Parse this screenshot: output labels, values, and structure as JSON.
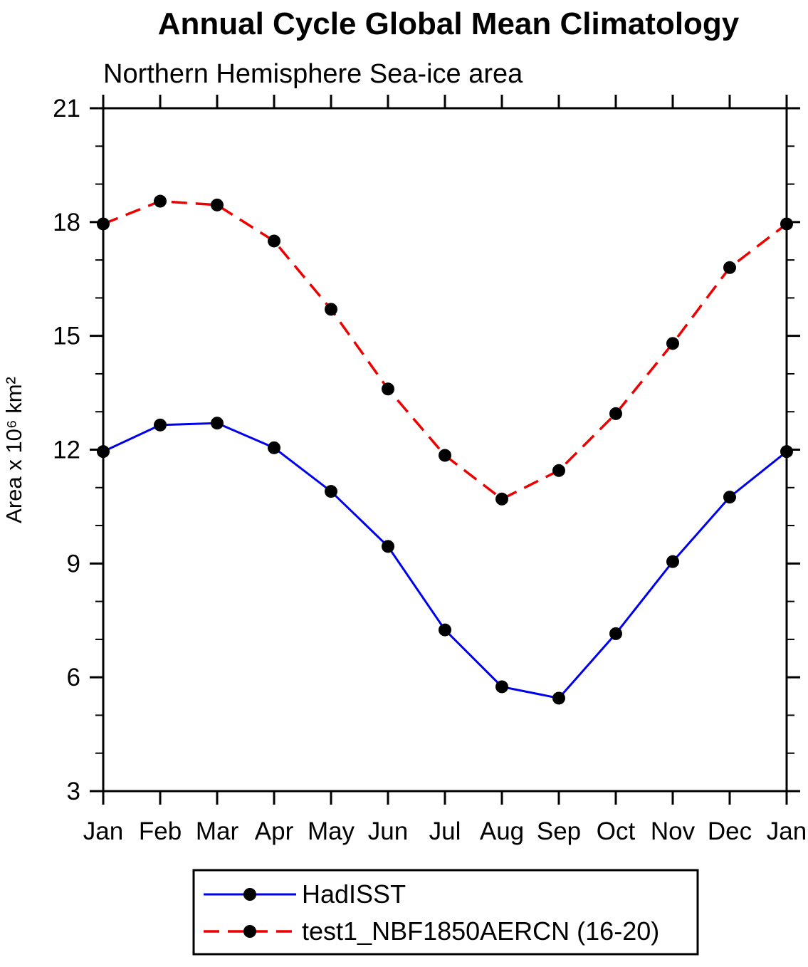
{
  "title": "Annual Cycle Global Mean Climatology",
  "subtitle": "Northern Hemisphere Sea-ice area",
  "y_axis_label": "Area x 10⁶ km²",
  "chart_data": {
    "type": "line",
    "categories": [
      "Jan",
      "Feb",
      "Mar",
      "Apr",
      "May",
      "Jun",
      "Jul",
      "Aug",
      "Sep",
      "Oct",
      "Nov",
      "Dec",
      "Jan"
    ],
    "series": [
      {
        "name": "HadISST",
        "color": "#0000ee",
        "line_style": "solid",
        "marker": "filled-circle",
        "marker_color": "#000000",
        "values": [
          11.95,
          12.65,
          12.7,
          12.05,
          10.9,
          9.45,
          7.25,
          5.75,
          5.45,
          7.15,
          9.05,
          10.75,
          11.95
        ]
      },
      {
        "name": "test1_NBF1850AERCN (16-20)",
        "color": "#ee0000",
        "line_style": "dashed",
        "marker": "filled-circle",
        "marker_color": "#000000",
        "values": [
          17.95,
          18.55,
          18.45,
          17.5,
          15.7,
          13.6,
          11.85,
          10.7,
          11.45,
          12.95,
          14.8,
          16.8,
          17.95
        ]
      }
    ],
    "title": "Annual Cycle Global Mean Climatology",
    "subtitle": "Northern Hemisphere Sea-ice area",
    "xlabel": "",
    "ylabel": "Area x 10^6 km^2",
    "ylim": [
      3,
      21
    ],
    "yticks": [
      3,
      6,
      9,
      12,
      15,
      18,
      21
    ],
    "y_minor_interval": 1,
    "grid": false,
    "legend_position": "bottom",
    "axis_color": "#000000"
  }
}
